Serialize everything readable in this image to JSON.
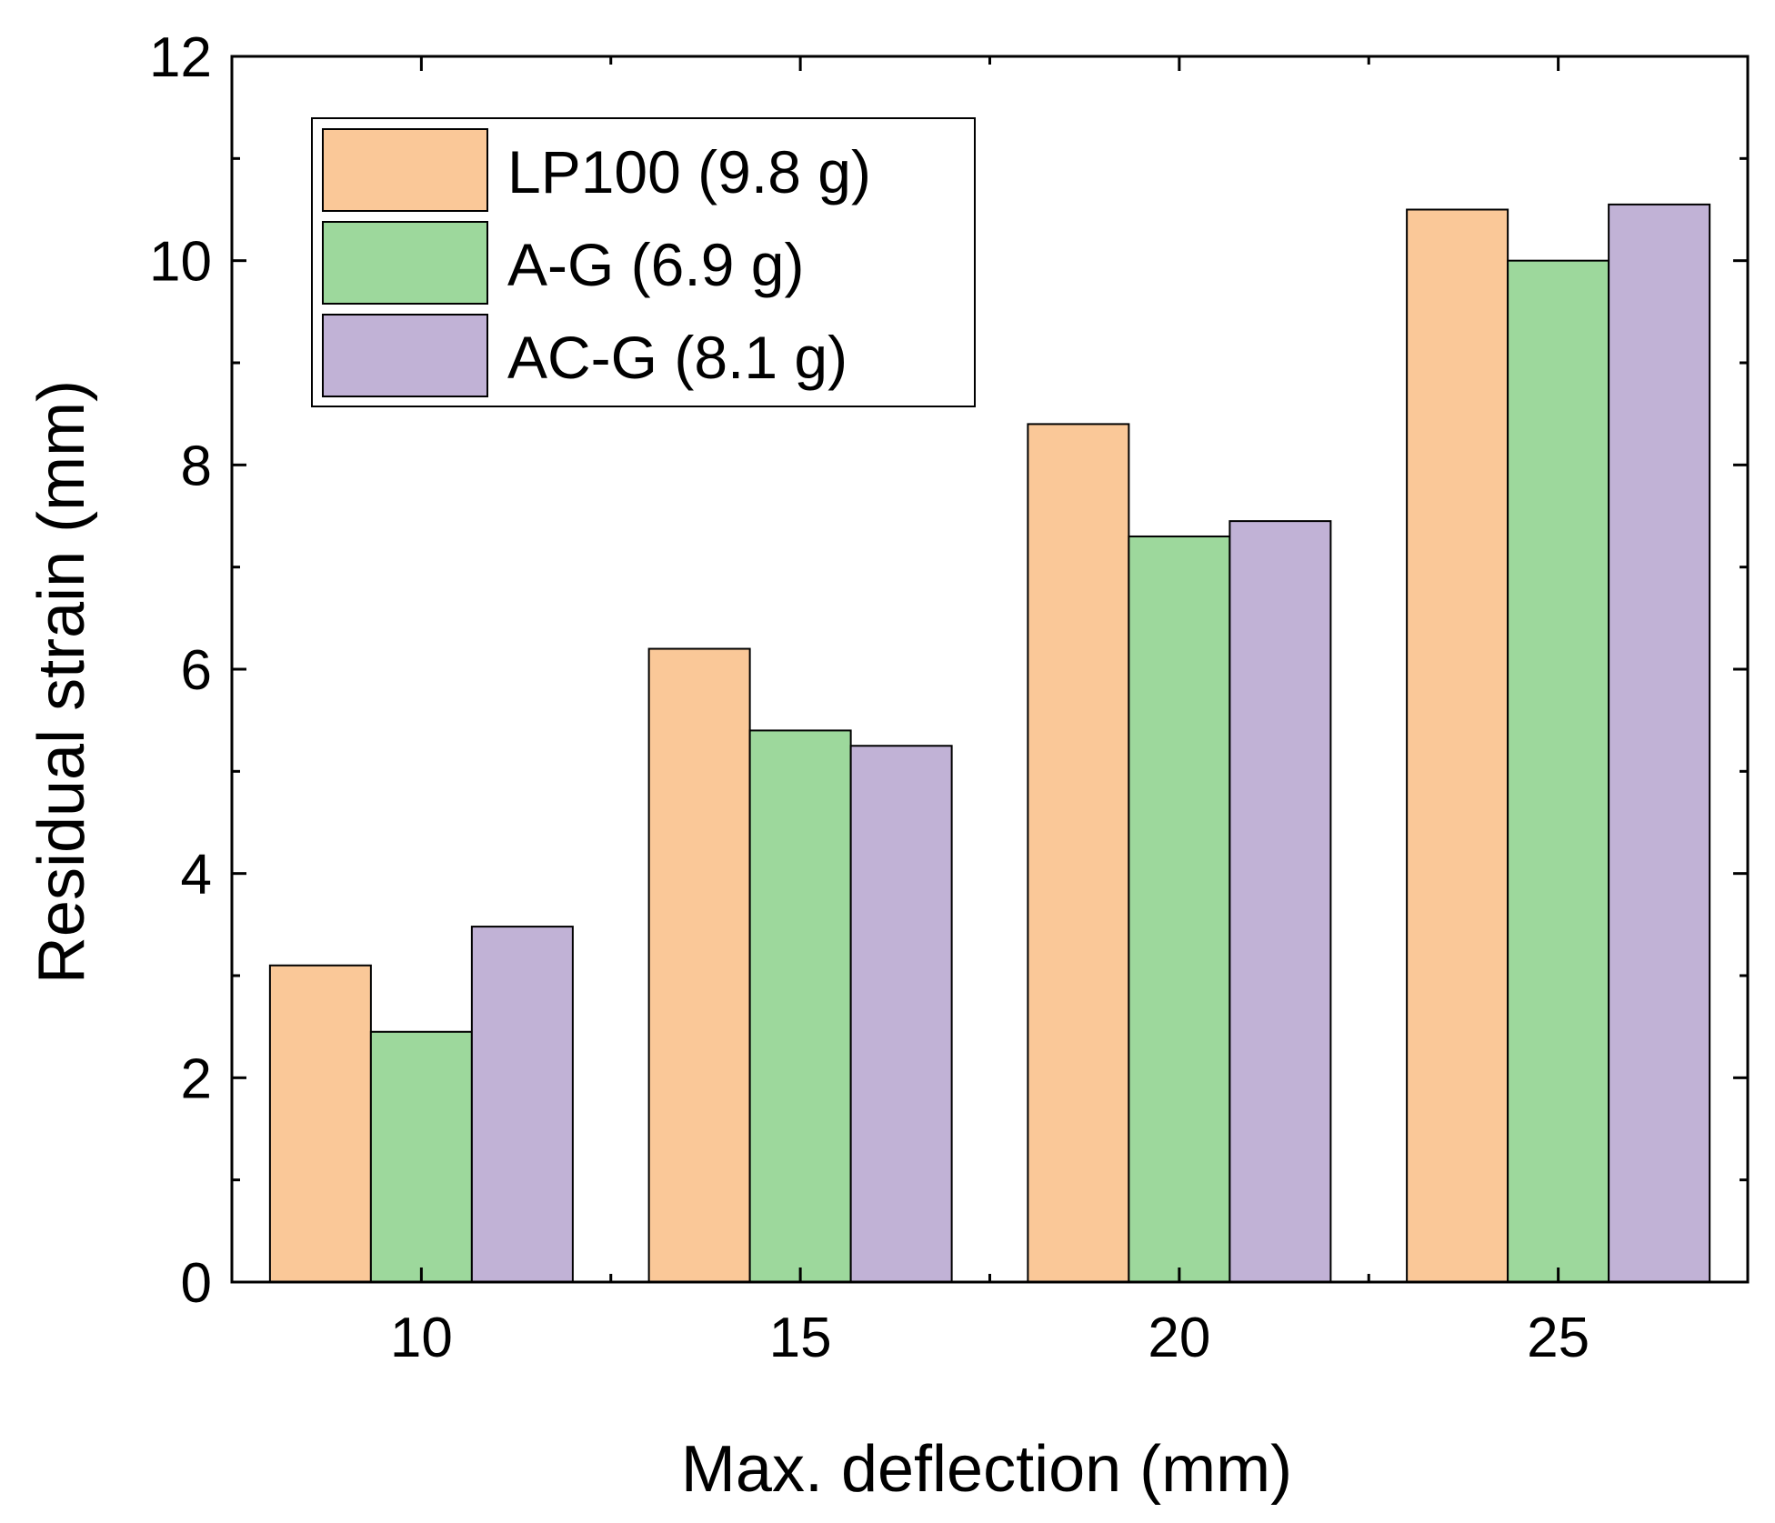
{
  "chart_data": {
    "type": "bar",
    "title": "",
    "xlabel": "Max. deflection (mm)",
    "ylabel": "Residual strain (mm)",
    "categories": [
      "10",
      "15",
      "20",
      "25"
    ],
    "series": [
      {
        "name": "LP100 (9.8 g)",
        "color": "#FAC898",
        "values": [
          3.1,
          6.2,
          8.4,
          10.5
        ]
      },
      {
        "name": "A-G (6.9 g)",
        "color": "#9DD89C",
        "values": [
          2.45,
          5.4,
          7.3,
          10.0
        ]
      },
      {
        "name": "AC-G (8.1 g)",
        "color": "#C1B2D6",
        "values": [
          3.48,
          5.25,
          7.45,
          10.55
        ]
      }
    ],
    "ylim": [
      0,
      12
    ],
    "yticks": [
      0,
      2,
      4,
      6,
      8,
      10,
      12
    ],
    "grid": false,
    "legend_position": "top-left"
  }
}
